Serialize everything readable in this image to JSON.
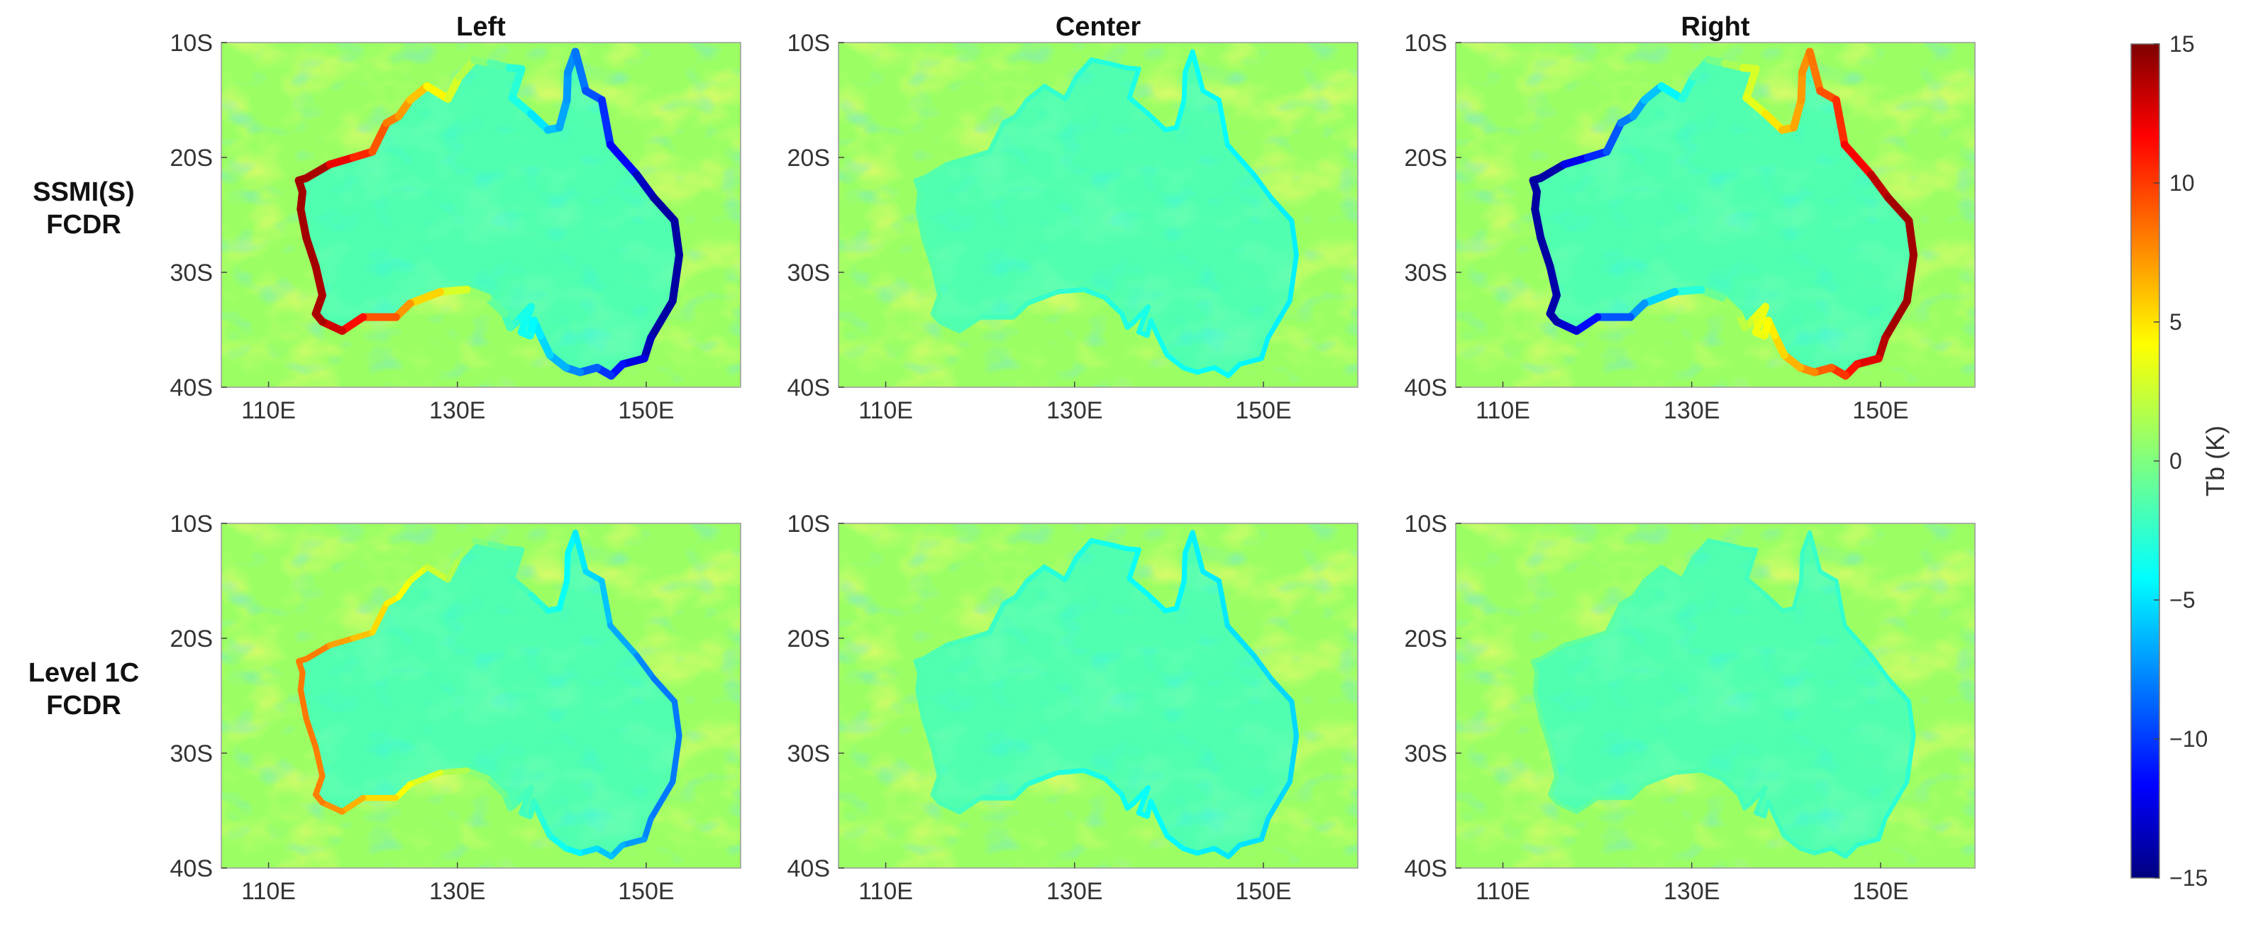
{
  "chart_data": {
    "type": "heatmap",
    "columns": [
      "Left",
      "Center",
      "Right"
    ],
    "rows": [
      "SSMI(S)\nFCDR",
      "Level 1C\nFCDR"
    ],
    "x_ticks": [
      "110E",
      "130E",
      "150E"
    ],
    "x_tick_values": [
      110,
      130,
      150
    ],
    "y_ticks": [
      "10S",
      "20S",
      "30S",
      "40S"
    ],
    "y_tick_values": [
      -10,
      -20,
      -30,
      -40
    ],
    "xlim": [
      105,
      160
    ],
    "ylim": [
      -40,
      -10
    ],
    "colorbar": {
      "label": "Tb (K)",
      "range": [
        -15,
        15
      ],
      "ticks": [
        "15",
        "10",
        "5",
        "0",
        "−5",
        "−10",
        "−15"
      ],
      "tick_values": [
        15,
        10,
        5,
        0,
        -5,
        -10,
        -15
      ],
      "colormap": "jet"
    },
    "panels": [
      {
        "row": 0,
        "col": 0,
        "coast_pattern": "west-positive-east-negative",
        "edge_amplitude": 1.0
      },
      {
        "row": 0,
        "col": 1,
        "coast_pattern": "weak",
        "edge_amplitude": 0.3
      },
      {
        "row": 0,
        "col": 2,
        "coast_pattern": "west-negative-east-positive",
        "edge_amplitude": 1.0
      },
      {
        "row": 1,
        "col": 0,
        "coast_pattern": "west-positive-east-negative",
        "edge_amplitude": 0.55
      },
      {
        "row": 1,
        "col": 1,
        "coast_pattern": "weak",
        "edge_amplitude": 0.35
      },
      {
        "row": 1,
        "col": 2,
        "coast_pattern": "very-weak",
        "edge_amplitude": 0.18
      }
    ]
  }
}
